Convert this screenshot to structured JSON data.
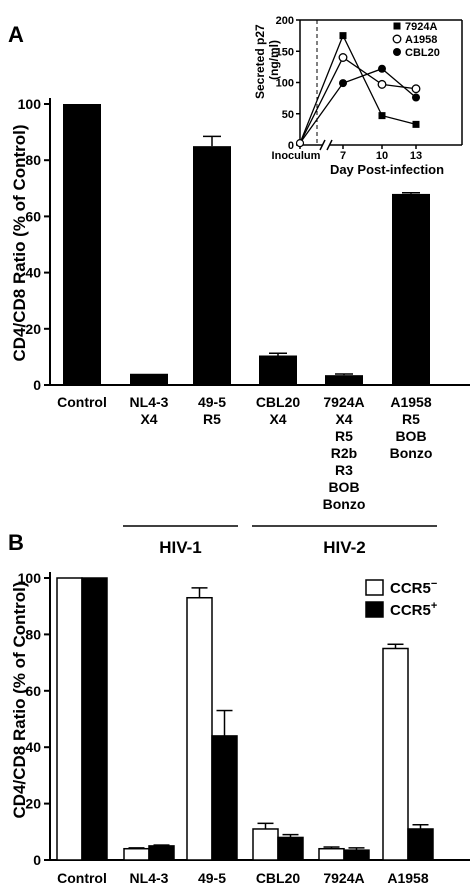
{
  "panel_a": {
    "panel_label": "A",
    "ylabel": "CD4/CD8 Ratio (% of Control)",
    "ylim": [
      0,
      100
    ],
    "yticks": [
      "0",
      "20",
      "40",
      "60",
      "80",
      "100"
    ],
    "categories": [
      {
        "lines": [
          "Control"
        ]
      },
      {
        "lines": [
          "NL4-3",
          "X4"
        ]
      },
      {
        "lines": [
          "49-5",
          "R5"
        ]
      },
      {
        "lines": [
          "CBL20",
          "X4"
        ]
      },
      {
        "lines": [
          "7924A",
          "X4",
          "R5",
          "R2b",
          "R3",
          "BOB",
          "Bonzo"
        ]
      },
      {
        "lines": [
          "A1958",
          "R5",
          "BOB",
          "Bonzo"
        ]
      }
    ],
    "groups": [
      {
        "label": "HIV-1",
        "from": 1,
        "to": 2
      },
      {
        "label": "HIV-2",
        "from": 3,
        "to": 5
      }
    ]
  },
  "chart_data": [
    {
      "type": "bar",
      "categories": [
        "Control",
        "NL4-3",
        "49-5",
        "CBL20",
        "7924A",
        "A1958"
      ],
      "values": [
        100,
        4,
        85,
        10.5,
        3.5,
        68
      ],
      "errors": [
        0,
        0,
        3.5,
        0.8,
        0.4,
        0.4
      ],
      "ylabel": "CD4/CD8 Ratio (% of Control)",
      "ylim": [
        0,
        100
      ]
    },
    {
      "type": "line",
      "ylabel": "Secreted p27 (ng/ml)",
      "xlabel": "Day Post-infection",
      "ylim": [
        0,
        200
      ],
      "yticks": [
        0,
        50,
        100,
        150,
        200
      ],
      "xtick_labels": [
        "Inoculum",
        "7",
        "10",
        "13"
      ],
      "series": [
        {
          "name": "7924A",
          "marker": "square-filled",
          "values": [
            3,
            175,
            47,
            33
          ]
        },
        {
          "name": "A1958",
          "marker": "circle-open",
          "values": [
            3,
            140,
            97,
            90
          ]
        },
        {
          "name": "CBL20",
          "marker": "circle-filled",
          "values": [
            3,
            99,
            122,
            76
          ]
        }
      ]
    },
    {
      "type": "bar",
      "categories": [
        "Control",
        "NL4-3",
        "49-5",
        "CBL20",
        "7924A",
        "A1958"
      ],
      "ylabel": "CD4/CD8 Ratio (% of Control)",
      "ylim": [
        0,
        100
      ],
      "legend_position": "top-right",
      "series": [
        {
          "name": "CCR5",
          "sign": "−",
          "fill": "#ffffff",
          "values": [
            100,
            4,
            93,
            11,
            4,
            75
          ],
          "errors": [
            0,
            0.3,
            3.5,
            2,
            0.6,
            1.5
          ]
        },
        {
          "name": "CCR5",
          "sign": "+",
          "fill": "#000000",
          "values": [
            100,
            5,
            44,
            8,
            3.5,
            11
          ],
          "errors": [
            0,
            0.3,
            9,
            1,
            0.8,
            1.5
          ]
        }
      ]
    }
  ],
  "panel_b": {
    "panel_label": "B",
    "yticks": [
      "0",
      "20",
      "40",
      "60",
      "80",
      "100"
    ]
  }
}
